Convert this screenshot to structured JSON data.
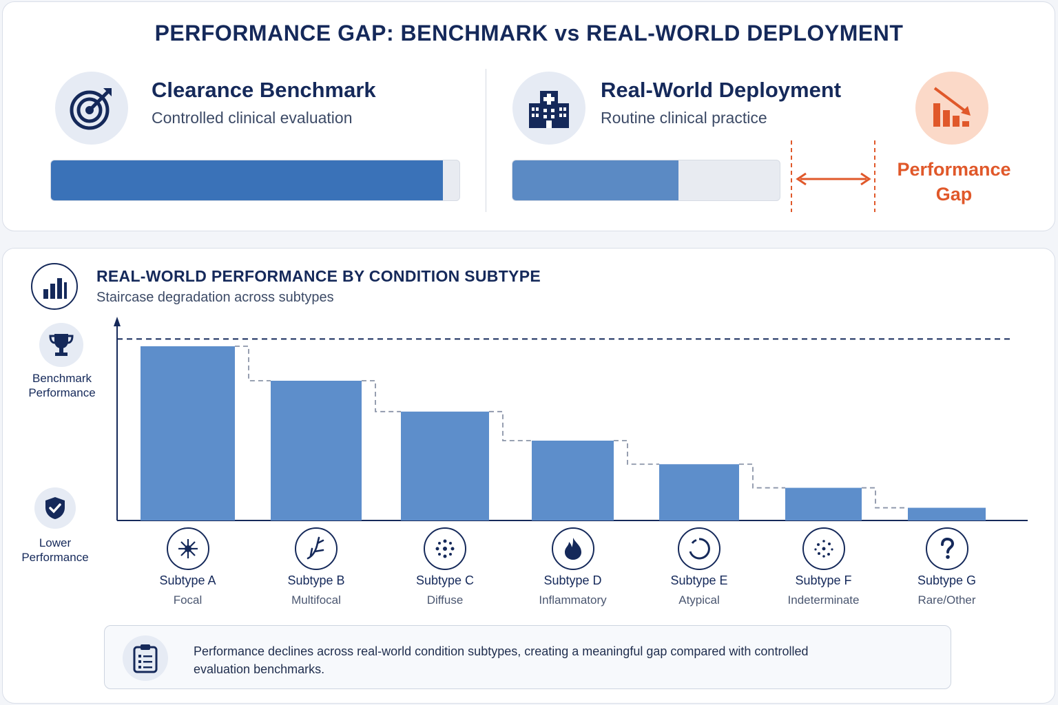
{
  "header": {
    "title": "PERFORMANCE GAP: BENCHMARK vs REAL-WORLD DEPLOYMENT"
  },
  "benchmark": {
    "title": "Clearance Benchmark",
    "subtitle": "Controlled clinical evaluation",
    "icon": "target-icon",
    "fill_fraction": 0.96,
    "color": "#3a72b8"
  },
  "deployment": {
    "title": "Real-World Deployment",
    "subtitle": "Routine clinical practice",
    "icon": "hospital-icon",
    "fill_fraction": 0.62,
    "color": "#5b8ac4"
  },
  "gap": {
    "label_line1": "Performance",
    "label_line2": "Gap",
    "icon": "declining-chart-icon",
    "color": "#e0582a"
  },
  "section": {
    "title": "REAL-WORLD PERFORMANCE BY CONDITION SUBTYPE",
    "subtitle": "Staircase degradation across subtypes",
    "icon": "bar-chart-icon"
  },
  "axis": {
    "top_label_line1": "Benchmark",
    "top_label_line2": "Performance",
    "top_icon": "trophy-icon",
    "bottom_label_line1": "Lower",
    "bottom_label_line2": "Performance",
    "bottom_icon": "shield-check-icon"
  },
  "chart_data": {
    "type": "bar",
    "categories": [
      "Subtype A",
      "Subtype B",
      "Subtype C",
      "Subtype D",
      "Subtype E",
      "Subtype F",
      "Subtype G"
    ],
    "descriptors": [
      "Focal",
      "Multifocal",
      "Diffuse",
      "Inflammatory",
      "Atypical",
      "Indeterminate",
      "Rare/Other"
    ],
    "icons": [
      "focal-icon",
      "multifocal-branch-icon",
      "diffuse-dots-icon",
      "flame-icon",
      "atypical-ring-icon",
      "scattered-dots-icon",
      "question-mark-icon"
    ],
    "values": [
      0.96,
      0.77,
      0.6,
      0.44,
      0.31,
      0.18,
      0.07
    ],
    "benchmark_line": 1.0,
    "ylim": [
      0,
      1.1
    ],
    "grid": false,
    "bar_color": "#5d8ecb"
  },
  "note": {
    "icon": "clipboard-icon",
    "text": "Performance declines across real-world condition subtypes, creating a meaningful gap compared with controlled evaluation benchmarks."
  }
}
